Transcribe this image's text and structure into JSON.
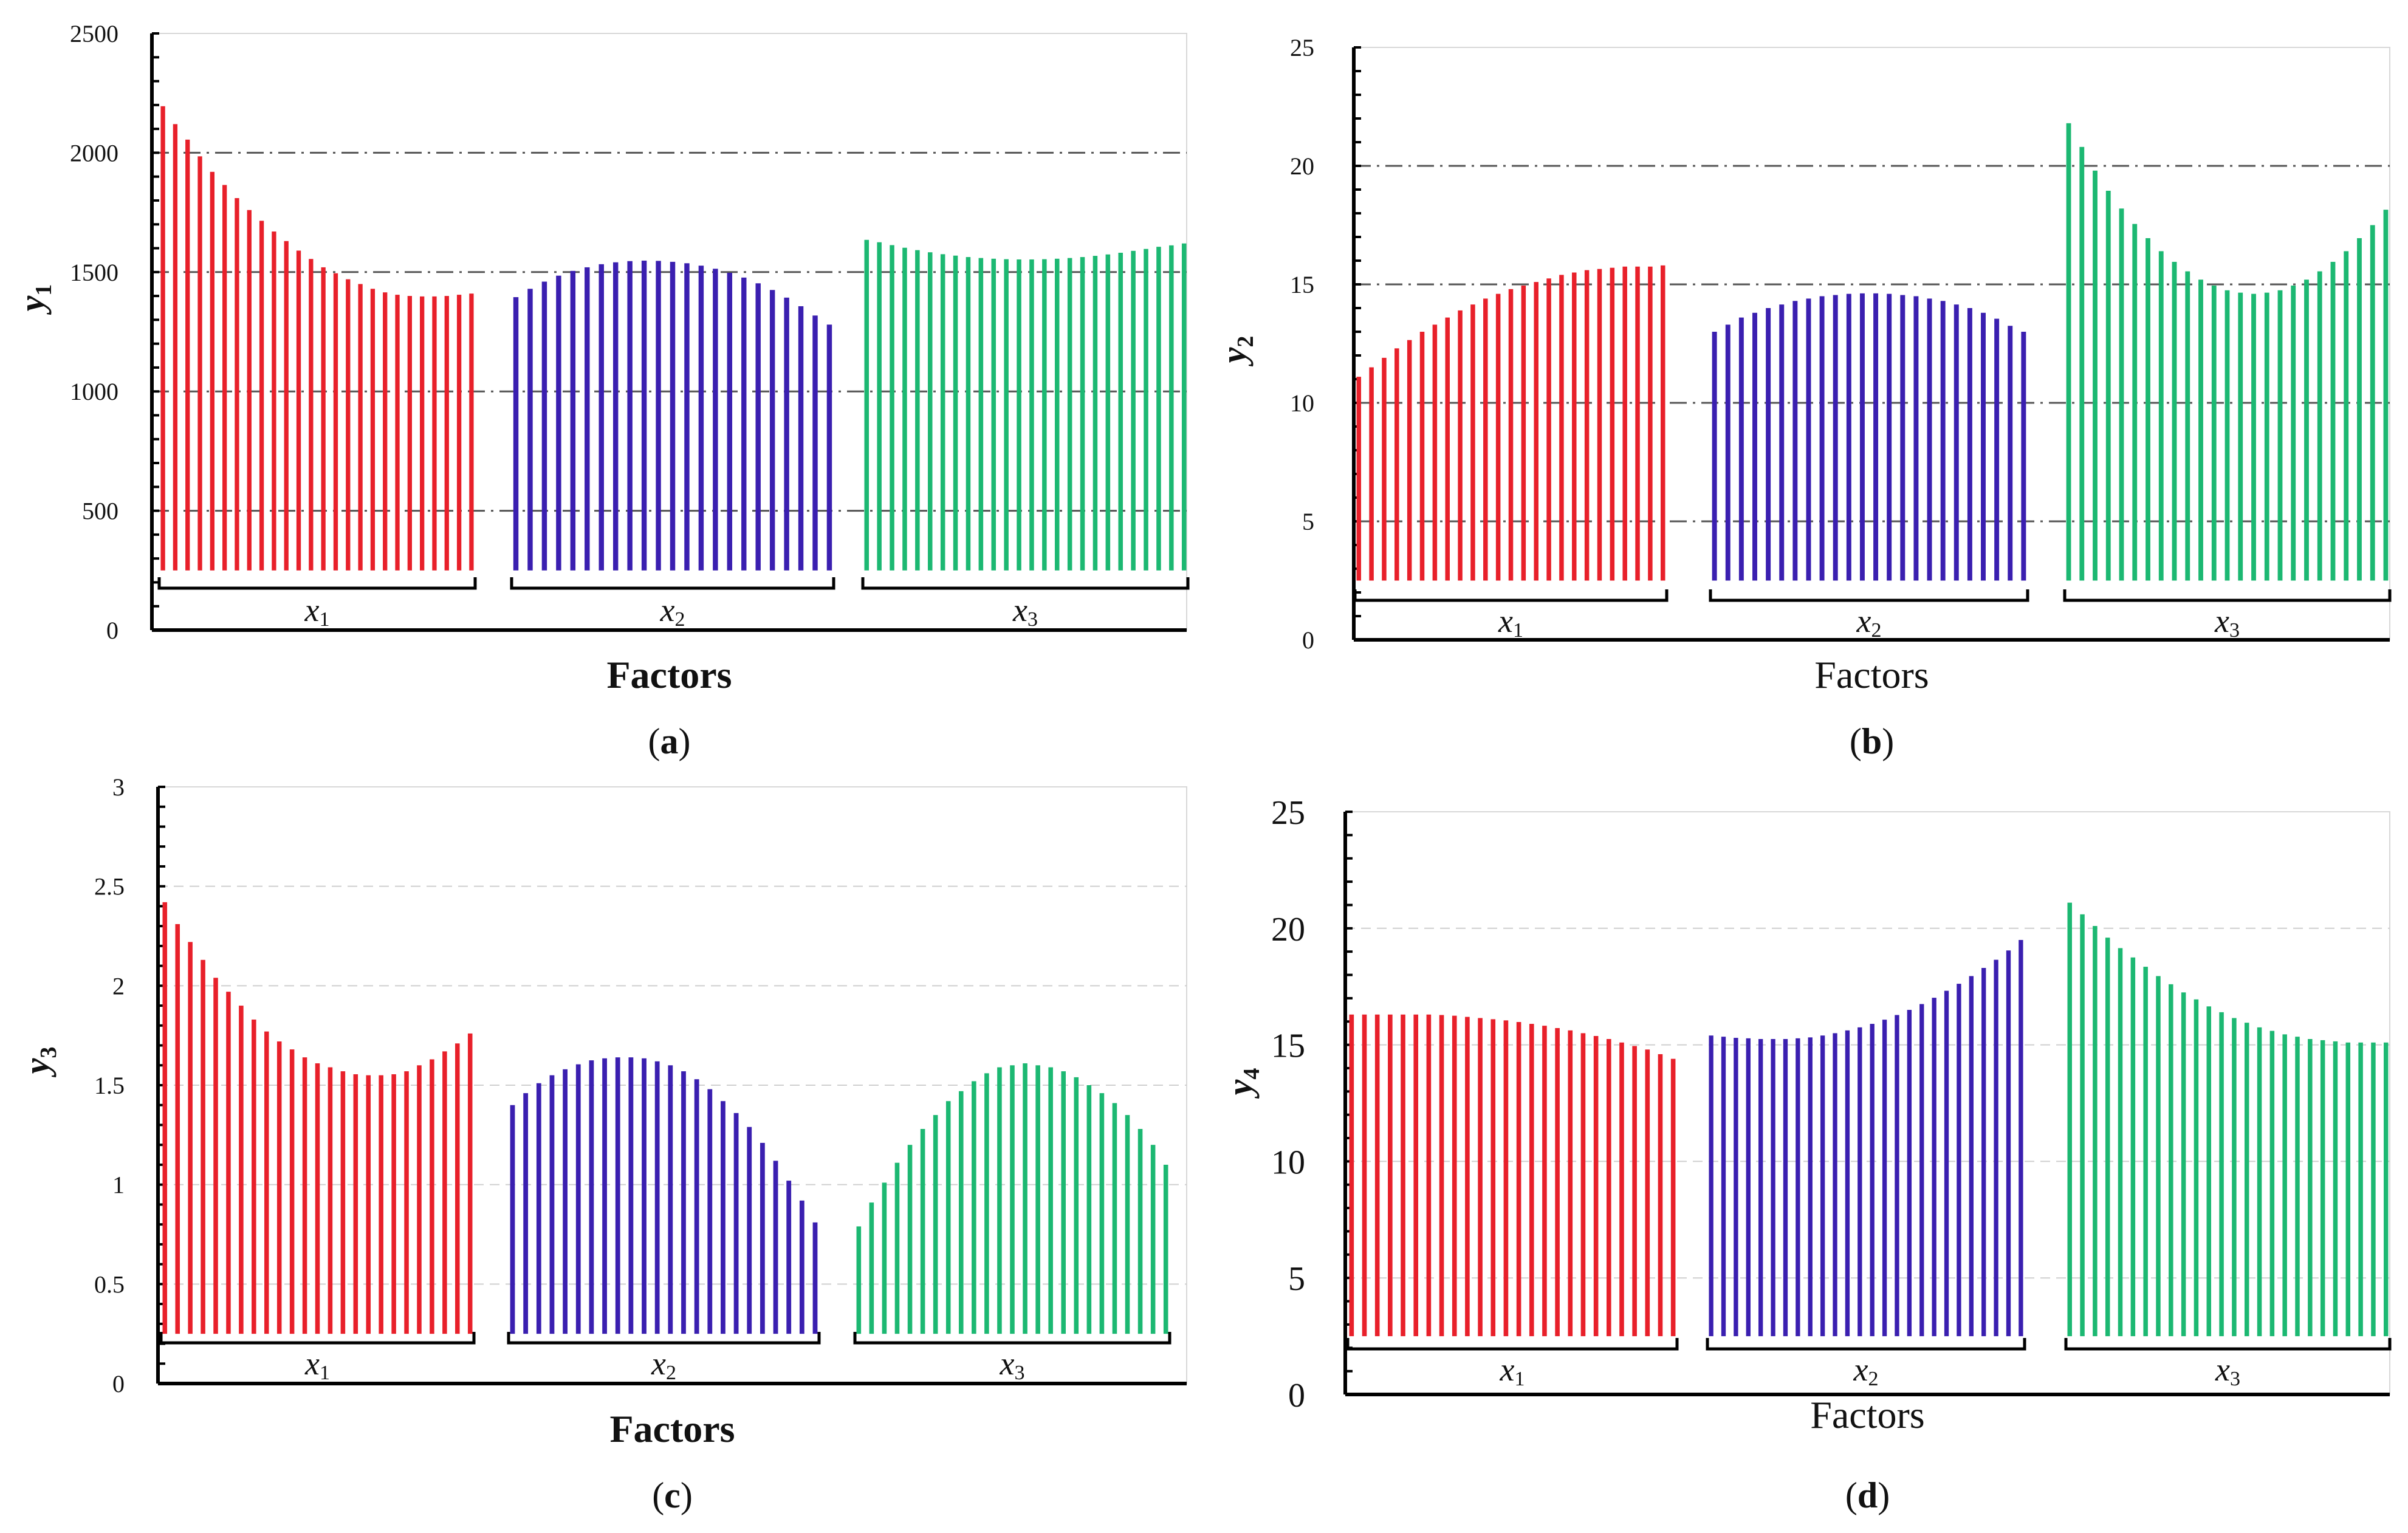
{
  "chart_data": [
    {
      "panel": "a",
      "type": "bar",
      "caption_letter": "a",
      "xlabel": "Factors",
      "xlabel_bold": true,
      "ylabel_main": "y",
      "ylabel_sub": "1",
      "ylim": [
        0,
        2500
      ],
      "yticks": [
        "0",
        "500",
        "1000",
        "1500",
        "2000",
        "2500"
      ],
      "gridlines": [
        500,
        1000,
        1500,
        2000
      ],
      "baseline": 250,
      "series": [
        {
          "name": "x1",
          "label_main": "x",
          "label_sub": "1",
          "color": "#e8202a",
          "values": [
            2195,
            2120,
            2055,
            1985,
            1920,
            1865,
            1810,
            1760,
            1715,
            1670,
            1630,
            1590,
            1555,
            1520,
            1495,
            1470,
            1450,
            1430,
            1415,
            1405,
            1400,
            1398,
            1398,
            1400,
            1405,
            1410
          ]
        },
        {
          "name": "x2",
          "label_main": "x",
          "label_sub": "2",
          "color": "#3a1fb0",
          "values": [
            1395,
            1430,
            1460,
            1485,
            1505,
            1520,
            1533,
            1541,
            1546,
            1548,
            1547,
            1543,
            1537,
            1527,
            1514,
            1497,
            1477,
            1453,
            1425,
            1393,
            1357,
            1318,
            1280
          ]
        },
        {
          "name": "x3",
          "label_main": "x",
          "label_sub": "3",
          "color": "#1cb872",
          "values": [
            1635,
            1625,
            1613,
            1602,
            1592,
            1583,
            1575,
            1569,
            1563,
            1559,
            1556,
            1554,
            1553,
            1553,
            1554,
            1556,
            1559,
            1563,
            1568,
            1574,
            1581,
            1589,
            1597,
            1606,
            1612,
            1620
          ]
        }
      ]
    },
    {
      "panel": "b",
      "type": "bar",
      "caption_letter": "b",
      "xlabel": "Factors",
      "xlabel_bold": false,
      "ylabel_main": "y",
      "ylabel_sub": "2",
      "ylim": [
        0,
        25
      ],
      "yticks": [
        "0",
        "5",
        "10",
        "15",
        "20",
        "25"
      ],
      "gridlines": [
        5,
        10,
        15,
        20
      ],
      "baseline": 2.5,
      "series": [
        {
          "name": "x1",
          "label_main": "x",
          "label_sub": "1",
          "color": "#e8202a",
          "values": [
            11.1,
            11.5,
            11.9,
            12.3,
            12.65,
            13.0,
            13.3,
            13.6,
            13.9,
            14.15,
            14.4,
            14.6,
            14.8,
            14.95,
            15.1,
            15.25,
            15.4,
            15.5,
            15.6,
            15.65,
            15.7,
            15.75,
            15.75,
            15.75,
            15.8
          ]
        },
        {
          "name": "x2",
          "label_main": "x",
          "label_sub": "2",
          "color": "#3a1fb0",
          "values": [
            13.0,
            13.3,
            13.6,
            13.8,
            14.0,
            14.15,
            14.3,
            14.4,
            14.5,
            14.55,
            14.6,
            14.62,
            14.62,
            14.6,
            14.55,
            14.5,
            14.4,
            14.3,
            14.15,
            14.0,
            13.8,
            13.55,
            13.25,
            13.0
          ]
        },
        {
          "name": "x3",
          "label_main": "x",
          "label_sub": "3",
          "color": "#1cb872",
          "values": [
            21.8,
            20.8,
            19.8,
            18.95,
            18.2,
            17.55,
            16.95,
            16.4,
            15.95,
            15.55,
            15.2,
            14.95,
            14.75,
            14.65,
            14.6,
            14.65,
            14.75,
            14.95,
            15.2,
            15.55,
            15.95,
            16.4,
            16.95,
            17.5,
            18.15
          ]
        }
      ]
    },
    {
      "panel": "c",
      "type": "bar",
      "caption_letter": "c",
      "xlabel": "Factors",
      "xlabel_bold": true,
      "ylabel_main": "y",
      "ylabel_sub": "3",
      "ylim": [
        0,
        3
      ],
      "yticks": [
        "0",
        "0.5",
        "1",
        "1.5",
        "2",
        "2.5",
        "3"
      ],
      "gridlines": [
        0.5,
        1,
        1.5,
        2,
        2.5
      ],
      "baseline": 0.25,
      "series": [
        {
          "name": "x1",
          "label_main": "x",
          "label_sub": "1",
          "color": "#e8202a",
          "values": [
            2.42,
            2.31,
            2.22,
            2.13,
            2.04,
            1.97,
            1.9,
            1.83,
            1.77,
            1.72,
            1.68,
            1.64,
            1.61,
            1.59,
            1.57,
            1.555,
            1.55,
            1.55,
            1.555,
            1.57,
            1.6,
            1.63,
            1.67,
            1.71,
            1.76
          ]
        },
        {
          "name": "x2",
          "label_main": "x",
          "label_sub": "2",
          "color": "#3a1fb0",
          "values": [
            1.4,
            1.46,
            1.51,
            1.55,
            1.58,
            1.605,
            1.625,
            1.635,
            1.64,
            1.64,
            1.635,
            1.62,
            1.6,
            1.57,
            1.53,
            1.48,
            1.42,
            1.36,
            1.29,
            1.21,
            1.12,
            1.02,
            0.92,
            0.81
          ]
        },
        {
          "name": "x3",
          "label_main": "x",
          "label_sub": "3",
          "color": "#1cb872",
          "values": [
            0.79,
            0.91,
            1.01,
            1.11,
            1.2,
            1.28,
            1.35,
            1.42,
            1.47,
            1.52,
            1.56,
            1.59,
            1.6,
            1.61,
            1.6,
            1.59,
            1.57,
            1.54,
            1.5,
            1.46,
            1.41,
            1.35,
            1.28,
            1.2,
            1.1
          ]
        }
      ]
    },
    {
      "panel": "d",
      "type": "bar",
      "caption_letter": "d",
      "xlabel": "Factors",
      "xlabel_bold": false,
      "ylabel_main": "y",
      "ylabel_sub": "4",
      "ylim": [
        0,
        25
      ],
      "yticks": [
        "0",
        "5",
        "10",
        "15",
        "20",
        "25"
      ],
      "gridlines": [
        5,
        10,
        15,
        20
      ],
      "baseline": 2.5,
      "series": [
        {
          "name": "x1",
          "label_main": "x",
          "label_sub": "1",
          "color": "#e8202a",
          "values": [
            16.3,
            16.3,
            16.3,
            16.3,
            16.3,
            16.3,
            16.3,
            16.28,
            16.25,
            16.2,
            16.15,
            16.1,
            16.05,
            15.98,
            15.9,
            15.82,
            15.72,
            15.62,
            15.5,
            15.38,
            15.25,
            15.1,
            14.95,
            14.8,
            14.6,
            14.4
          ]
        },
        {
          "name": "x2",
          "label_main": "x",
          "label_sub": "2",
          "color": "#3a1fb0",
          "values": [
            15.4,
            15.35,
            15.3,
            15.28,
            15.25,
            15.25,
            15.25,
            15.28,
            15.32,
            15.4,
            15.5,
            15.62,
            15.75,
            15.9,
            16.08,
            16.28,
            16.5,
            16.75,
            17.02,
            17.32,
            17.62,
            17.95,
            18.3,
            18.65,
            19.05,
            19.5
          ]
        },
        {
          "name": "x3",
          "label_main": "x",
          "label_sub": "3",
          "color": "#1cb872",
          "values": [
            21.1,
            20.6,
            20.1,
            19.6,
            19.15,
            18.75,
            18.35,
            17.95,
            17.6,
            17.25,
            16.95,
            16.65,
            16.4,
            16.15,
            15.95,
            15.75,
            15.6,
            15.45,
            15.35,
            15.25,
            15.2,
            15.15,
            15.1,
            15.1,
            15.1,
            15.1
          ]
        }
      ]
    }
  ]
}
